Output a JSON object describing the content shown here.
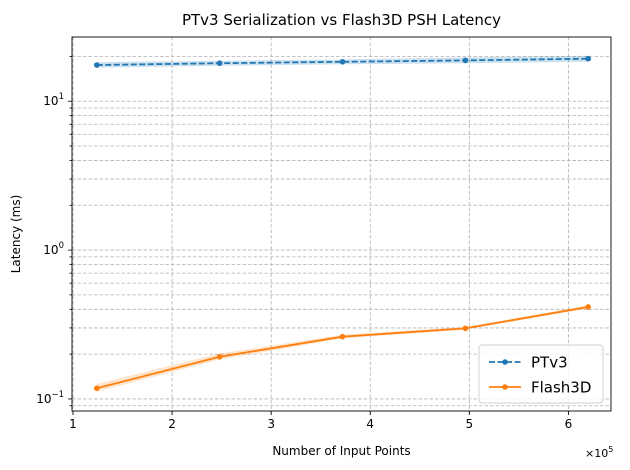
{
  "chart_data": {
    "type": "line",
    "title": "PTv3 Serialization vs Flash3D PSH Latency",
    "xlabel": "Number of Input Points",
    "ylabel": "Latency (ms)",
    "x_scale_label": "×10",
    "x_scale_exponent": "5",
    "x_scale_factor": 100000,
    "yscale": "log",
    "xlim": [
      99000,
      643000
    ],
    "ylim": [
      0.083,
      27
    ],
    "x_ticks": [
      100000,
      200000,
      300000,
      400000,
      500000,
      600000
    ],
    "x_tick_labels": [
      "1",
      "2",
      "3",
      "4",
      "5",
      "6"
    ],
    "y_major_ticks": [
      0.1,
      1,
      10
    ],
    "y_tick_labels": [
      {
        "base": "10",
        "exp": "−1"
      },
      {
        "base": "10",
        "exp": "0"
      },
      {
        "base": "10",
        "exp": "1"
      }
    ],
    "grid": true,
    "grid_style": "dashed",
    "legend_placement": "bottom-right",
    "series": [
      {
        "name": "PTv3",
        "color": "#1f77b4",
        "linestyle": "dashed",
        "marker": "circle",
        "x": [
          124000,
          248000,
          372000,
          496000,
          620000
        ],
        "y": [
          17.5,
          18.0,
          18.4,
          18.8,
          19.3
        ],
        "band_low": [
          16.8,
          17.3,
          17.7,
          18.0,
          18.4
        ],
        "band_high": [
          18.3,
          18.7,
          19.1,
          19.7,
          20.2
        ]
      },
      {
        "name": "Flash3D",
        "color": "#ff7f0e",
        "linestyle": "solid",
        "marker": "circle",
        "x": [
          124000,
          248000,
          372000,
          496000,
          620000
        ],
        "y": [
          0.118,
          0.192,
          0.262,
          0.298,
          0.415
        ],
        "band_low": [
          0.112,
          0.184,
          0.255,
          0.292,
          0.405
        ],
        "band_high": [
          0.126,
          0.202,
          0.27,
          0.305,
          0.425
        ]
      }
    ]
  }
}
